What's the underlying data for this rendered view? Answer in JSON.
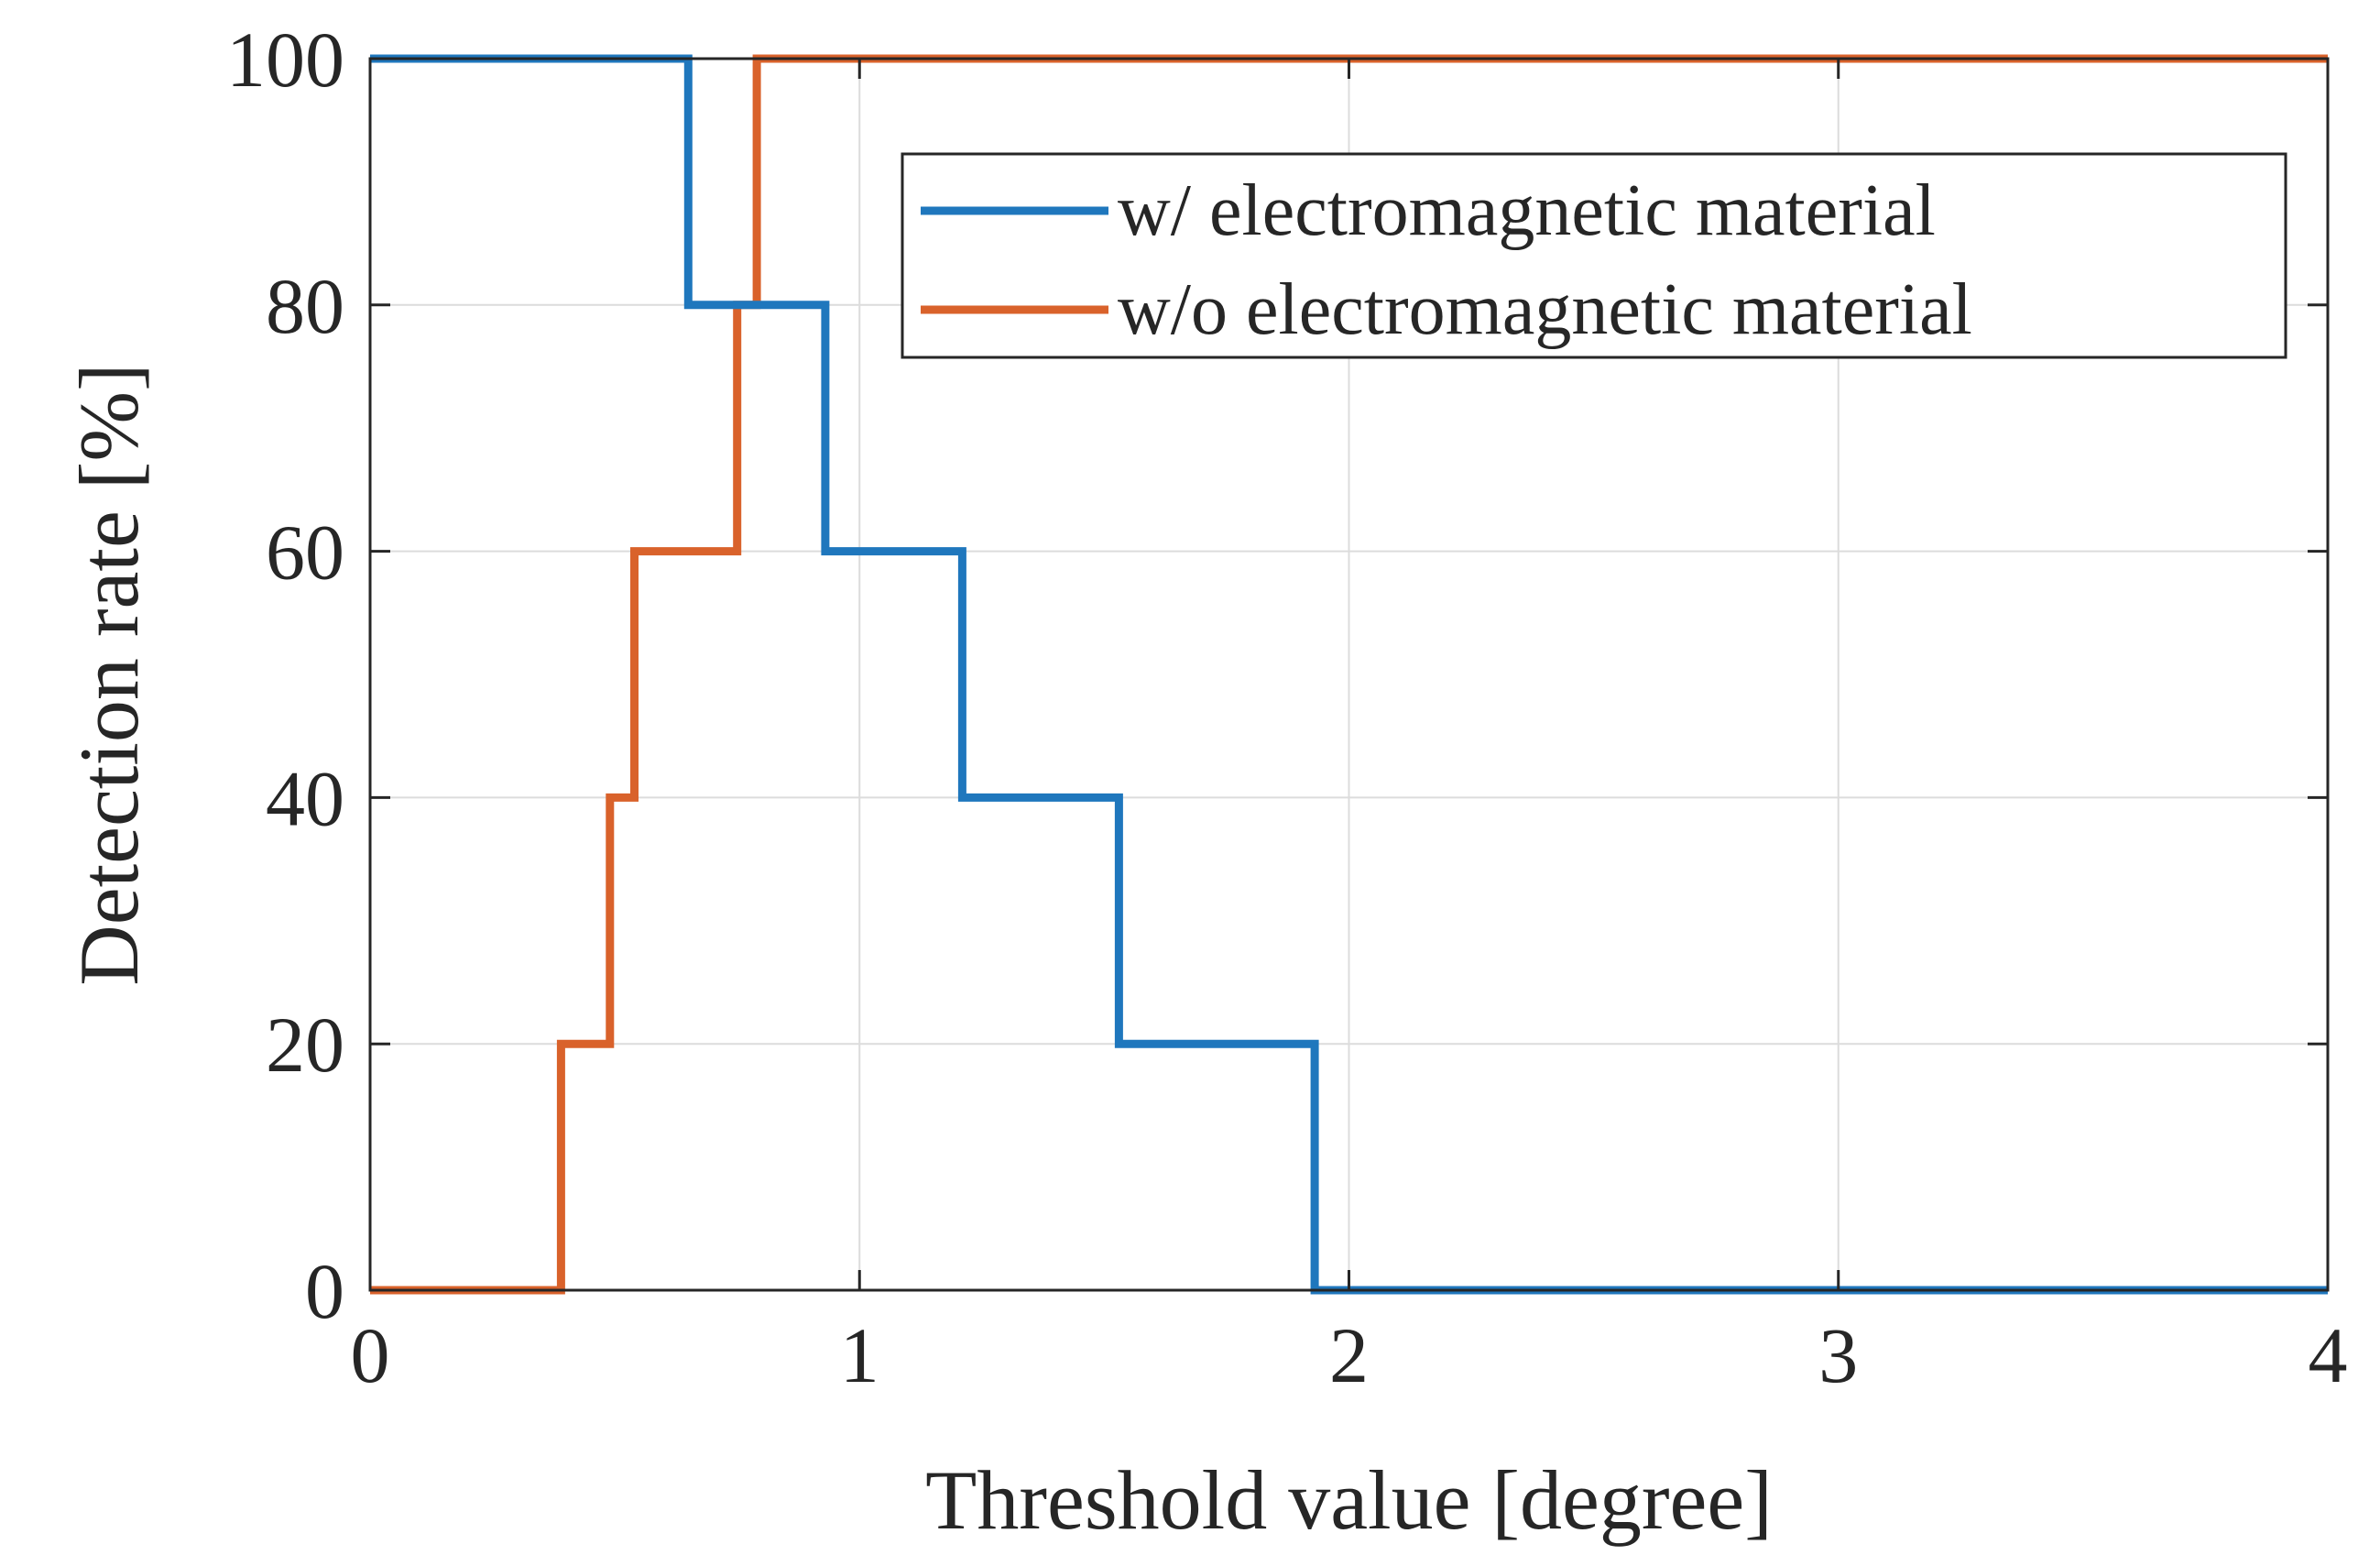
{
  "chart_data": {
    "type": "line",
    "step": true,
    "title": "",
    "xlabel": "Threshold value [degree]",
    "ylabel": "Detection rate [%]",
    "xlim": [
      0,
      4
    ],
    "ylim": [
      0,
      100
    ],
    "xticks": [
      0,
      1,
      2,
      3,
      4
    ],
    "yticks": [
      0,
      20,
      40,
      60,
      80,
      100
    ],
    "xtick_labels": [
      "0",
      "1",
      "2",
      "3",
      "4"
    ],
    "ytick_labels": [
      "0",
      "20",
      "40",
      "60",
      "80",
      "100"
    ],
    "grid": true,
    "legend_position": "top-right",
    "series": [
      {
        "name": "w/ electromagnetic material",
        "color": "#1f77bd",
        "x": [
          0,
          0.65,
          0.65,
          0.93,
          0.93,
          1.21,
          1.21,
          1.53,
          1.53,
          1.93,
          1.93,
          4
        ],
        "y": [
          100,
          100,
          80,
          80,
          60,
          60,
          40,
          40,
          20,
          20,
          0,
          0
        ]
      },
      {
        "name": "w/o electromagnetic material",
        "color": "#d9622b",
        "x": [
          0,
          0.39,
          0.39,
          0.49,
          0.49,
          0.54,
          0.54,
          0.75,
          0.75,
          0.79,
          0.79,
          4
        ],
        "y": [
          0,
          0,
          20,
          20,
          40,
          40,
          60,
          60,
          80,
          80,
          100,
          100
        ]
      }
    ]
  }
}
